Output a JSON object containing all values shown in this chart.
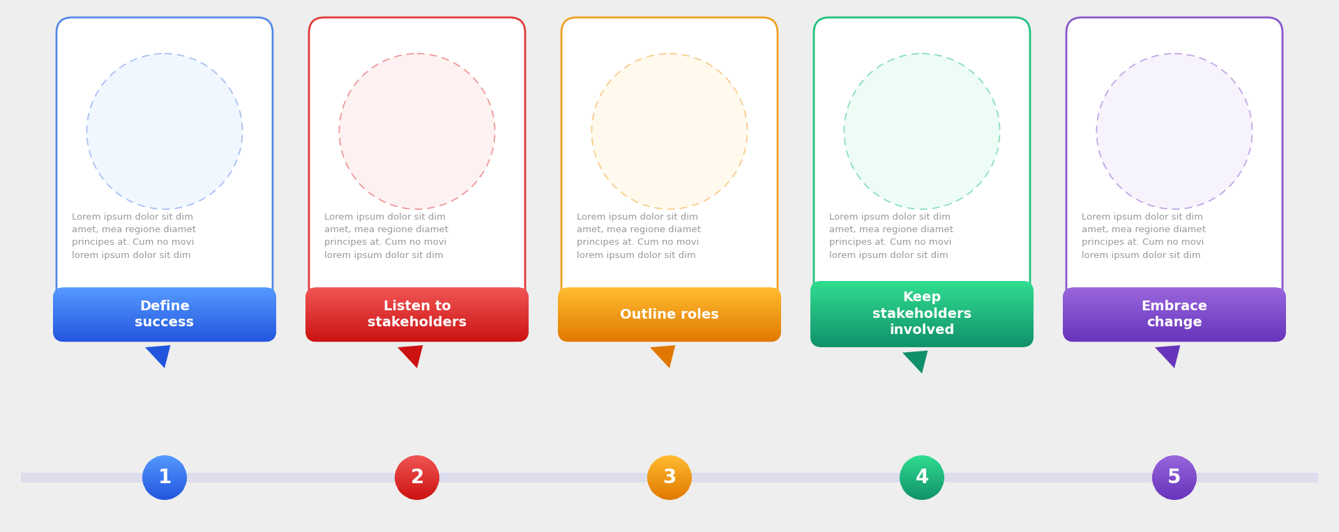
{
  "background_color": "#eeeeee",
  "steps": [
    {
      "number": "1",
      "label": "Define\nsuccess",
      "body": "Lorem ipsum dolor sit dim\namet, mea regione diamet\nprincipes at. Cum no movi\nlorem ipsum dolor sit dim",
      "border_color": "#5588e8",
      "gradient_top": "#5599ff",
      "gradient_bottom": "#2255dd"
    },
    {
      "number": "2",
      "label": "Listen to\nstakeholders",
      "body": "Lorem ipsum dolor sit dim\namet, mea regione diamet\nprincipes at. Cum no movi\nlorem ipsum dolor sit dim",
      "border_color": "#e03838",
      "gradient_top": "#f05555",
      "gradient_bottom": "#cc1111"
    },
    {
      "number": "3",
      "label": "Outline roles",
      "body": "Lorem ipsum dolor sit dim\namet, mea regione diamet\nprincipes at. Cum no movi\nlorem ipsum dolor sit dim",
      "border_color": "#f0a020",
      "gradient_top": "#ffbb30",
      "gradient_bottom": "#e07800"
    },
    {
      "number": "4",
      "label": "Keep\nstakeholders\ninvolved",
      "body": "Lorem ipsum dolor sit dim\namet, mea regione diamet\nprincipes at. Cum no movi\nlorem ipsum dolor sit dim",
      "border_color": "#20c080",
      "gradient_top": "#30dd90",
      "gradient_bottom": "#10906a"
    },
    {
      "number": "5",
      "label": "Embrace\nchange",
      "body": "Lorem ipsum dolor sit dim\namet, mea regione diamet\nprincipes at. Cum no movi\nlorem ipsum dolor sit dim",
      "border_color": "#8855cc",
      "gradient_top": "#9966dd",
      "gradient_bottom": "#6633bb"
    }
  ],
  "timeline_color": "#ddddee",
  "card_bg": "#ffffff",
  "body_text_color": "#999999",
  "label_text_color": "#ffffff"
}
